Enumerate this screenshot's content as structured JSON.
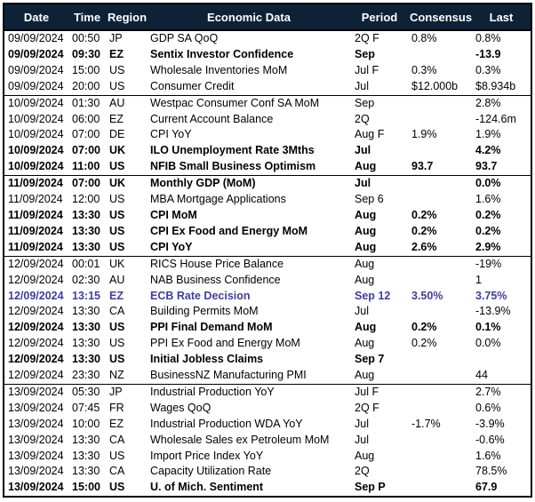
{
  "table": {
    "columns": [
      "Date",
      "Time",
      "Region",
      "Economic Data",
      "Period",
      "Consensus",
      "Last"
    ],
    "colors": {
      "header_bg": "#0d2236",
      "header_text": "#ffffff",
      "row_text": "#000000",
      "highlight": "#403da3",
      "border": "#000000"
    },
    "rows": [
      {
        "date": "09/09/2024",
        "time": "00:50",
        "region": "JP",
        "event": "GDP SA QoQ",
        "period": "2Q F",
        "consensus": "0.8%",
        "last": "0.8%",
        "style": "normal",
        "group_start": false
      },
      {
        "date": "09/09/2024",
        "time": "09:30",
        "region": "EZ",
        "event": "Sentix Investor Confidence",
        "period": "Sep",
        "consensus": "",
        "last": "-13.9",
        "style": "bold",
        "group_start": false
      },
      {
        "date": "09/09/2024",
        "time": "15:00",
        "region": "US",
        "event": "Wholesale Inventories MoM",
        "period": "Jul F",
        "consensus": "0.3%",
        "last": "0.3%",
        "style": "normal",
        "group_start": false
      },
      {
        "date": "09/09/2024",
        "time": "20:00",
        "region": "US",
        "event": "Consumer Credit",
        "period": "Jul",
        "consensus": "$12.000b",
        "last": "$8.934b",
        "style": "normal",
        "group_start": false
      },
      {
        "date": "10/09/2024",
        "time": "01:30",
        "region": "AU",
        "event": "Westpac Consumer Conf SA MoM",
        "period": "Sep",
        "consensus": "",
        "last": "2.8%",
        "style": "normal",
        "group_start": true
      },
      {
        "date": "10/09/2024",
        "time": "06:00",
        "region": "EZ",
        "event": "Current Account Balance",
        "period": "2Q",
        "consensus": "",
        "last": "-124.6m",
        "style": "normal",
        "group_start": false
      },
      {
        "date": "10/09/2024",
        "time": "07:00",
        "region": "DE",
        "event": "CPI YoY",
        "period": "Aug F",
        "consensus": "1.9%",
        "last": "1.9%",
        "style": "normal",
        "group_start": false
      },
      {
        "date": "10/09/2024",
        "time": "07:00",
        "region": "UK",
        "event": "ILO Unemployment Rate 3Mths",
        "period": "Jul",
        "consensus": "",
        "last": "4.2%",
        "style": "bold",
        "group_start": false
      },
      {
        "date": "10/09/2024",
        "time": "11:00",
        "region": "US",
        "event": "NFIB Small Business Optimism",
        "period": "Aug",
        "consensus": "93.7",
        "last": "93.7",
        "style": "bold",
        "group_start": false
      },
      {
        "date": "11/09/2024",
        "time": "07:00",
        "region": "UK",
        "event": "Monthly GDP (MoM)",
        "period": "Jul",
        "consensus": "",
        "last": "0.0%",
        "style": "bold",
        "group_start": true
      },
      {
        "date": "11/09/2024",
        "time": "12:00",
        "region": "US",
        "event": "MBA Mortgage Applications",
        "period": "Sep 6",
        "consensus": "",
        "last": "1.6%",
        "style": "normal",
        "group_start": false
      },
      {
        "date": "11/09/2024",
        "time": "13:30",
        "region": "US",
        "event": "CPI MoM",
        "period": "Aug",
        "consensus": "0.2%",
        "last": "0.2%",
        "style": "bold",
        "group_start": false
      },
      {
        "date": "11/09/2024",
        "time": "13:30",
        "region": "US",
        "event": "CPI Ex Food and Energy MoM",
        "period": "Aug",
        "consensus": "0.2%",
        "last": "0.2%",
        "style": "bold",
        "group_start": false
      },
      {
        "date": "11/09/2024",
        "time": "13:30",
        "region": "US",
        "event": "CPI YoY",
        "period": "Aug",
        "consensus": "2.6%",
        "last": "2.9%",
        "style": "bold",
        "group_start": false
      },
      {
        "date": "12/09/2024",
        "time": "00:01",
        "region": "UK",
        "event": "RICS House Price Balance",
        "period": "Aug",
        "consensus": "",
        "last": "-19%",
        "style": "normal",
        "group_start": true
      },
      {
        "date": "12/09/2024",
        "time": "02:30",
        "region": "AU",
        "event": "NAB Business Confidence",
        "period": "Aug",
        "consensus": "",
        "last": "1",
        "style": "normal",
        "group_start": false
      },
      {
        "date": "12/09/2024",
        "time": "13:15",
        "region": "EZ",
        "event": "ECB Rate Decision",
        "period": "Sep 12",
        "consensus": "3.50%",
        "last": "3.75%",
        "style": "highlight",
        "group_start": false
      },
      {
        "date": "12/09/2024",
        "time": "13:30",
        "region": "CA",
        "event": "Building Permits MoM",
        "period": "Jul",
        "consensus": "",
        "last": "-13.9%",
        "style": "normal",
        "group_start": false
      },
      {
        "date": "12/09/2024",
        "time": "13:30",
        "region": "US",
        "event": "PPI Final Demand MoM",
        "period": "Aug",
        "consensus": "0.2%",
        "last": "0.1%",
        "style": "bold",
        "group_start": false
      },
      {
        "date": "12/09/2024",
        "time": "13:30",
        "region": "US",
        "event": "PPI Ex Food and Energy MoM",
        "period": "Aug",
        "consensus": "0.2%",
        "last": "0.0%",
        "style": "normal",
        "group_start": false
      },
      {
        "date": "12/09/2024",
        "time": "13:30",
        "region": "US",
        "event": "Initial Jobless Claims",
        "period": "Sep 7",
        "consensus": "",
        "last": "",
        "style": "bold",
        "group_start": false
      },
      {
        "date": "12/09/2024",
        "time": "23:30",
        "region": "NZ",
        "event": "BusinessNZ Manufacturing PMI",
        "period": "Aug",
        "consensus": "",
        "last": "44",
        "style": "normal",
        "group_start": false
      },
      {
        "date": "13/09/2024",
        "time": "05:30",
        "region": "JP",
        "event": "Industrial Production YoY",
        "period": "Jul F",
        "consensus": "",
        "last": "2.7%",
        "style": "normal",
        "group_start": true
      },
      {
        "date": "13/09/2024",
        "time": "07:45",
        "region": "FR",
        "event": "Wages QoQ",
        "period": "2Q F",
        "consensus": "",
        "last": "0.6%",
        "style": "normal",
        "group_start": false
      },
      {
        "date": "13/09/2024",
        "time": "10:00",
        "region": "EZ",
        "event": "Industrial Production WDA YoY",
        "period": "Jul",
        "consensus": "-1.7%",
        "last": "-3.9%",
        "style": "normal",
        "group_start": false
      },
      {
        "date": "13/09/2024",
        "time": "13:30",
        "region": "CA",
        "event": "Wholesale Sales ex Petroleum MoM",
        "period": "Jul",
        "consensus": "",
        "last": "-0.6%",
        "style": "normal",
        "group_start": false
      },
      {
        "date": "13/09/2024",
        "time": "13:30",
        "region": "US",
        "event": "Import Price Index YoY",
        "period": "Aug",
        "consensus": "",
        "last": "1.6%",
        "style": "normal",
        "group_start": false
      },
      {
        "date": "13/09/2024",
        "time": "13:30",
        "region": "CA",
        "event": "Capacity Utilization Rate",
        "period": "2Q",
        "consensus": "",
        "last": "78.5%",
        "style": "normal",
        "group_start": false
      },
      {
        "date": "13/09/2024",
        "time": "15:00",
        "region": "US",
        "event": "U. of Mich. Sentiment",
        "period": "Sep P",
        "consensus": "",
        "last": "67.9",
        "style": "bold",
        "group_start": false
      }
    ]
  }
}
